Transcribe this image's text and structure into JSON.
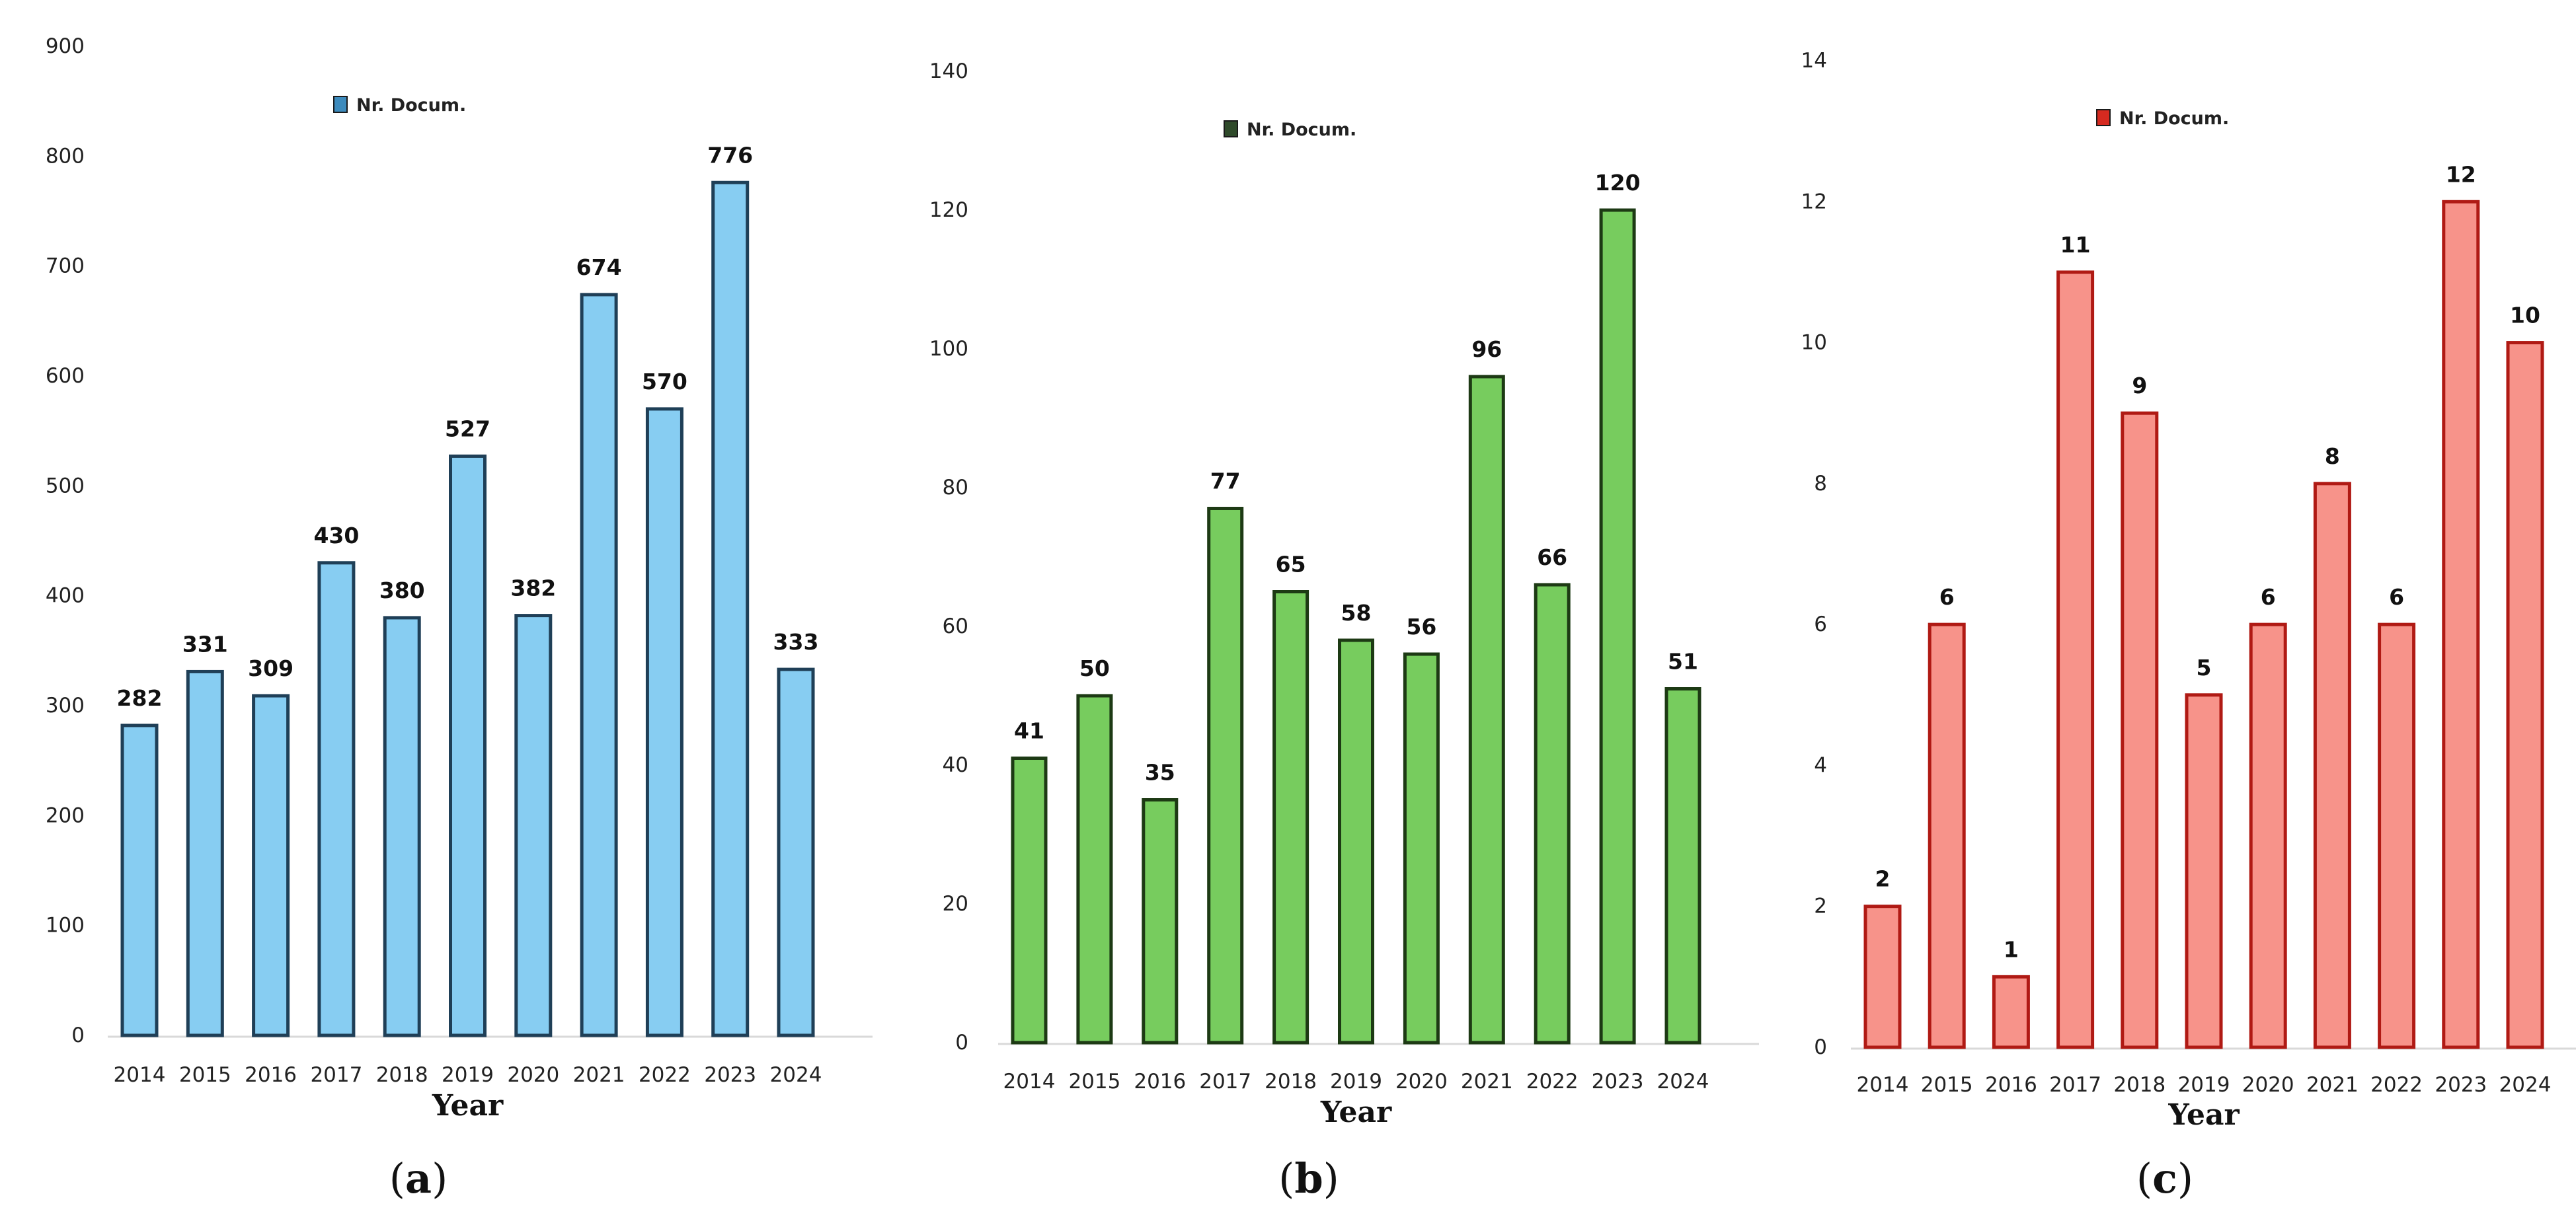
{
  "chart_data": [
    {
      "type": "bar",
      "panel_label": "a",
      "categories": [
        "2014",
        "2015",
        "2016",
        "2017",
        "2018",
        "2019",
        "2020",
        "2021",
        "2022",
        "2023",
        "2024"
      ],
      "values": [
        282,
        331,
        309,
        430,
        380,
        527,
        382,
        674,
        570,
        776,
        333
      ],
      "series_name": "Nr. Docum.",
      "xlabel": "Year",
      "ylabel": "",
      "ylim": [
        0,
        900
      ],
      "yticks": [
        "0",
        "100",
        "200",
        "300",
        "400",
        "500",
        "600",
        "700",
        "800",
        "900"
      ],
      "bar_color": "#87cdf2",
      "bar_edge_color": "#1f3f57",
      "legend_color": "#3d8bbd",
      "legend_placement": "top-center"
    },
    {
      "type": "bar",
      "panel_label": "b",
      "categories": [
        "2014",
        "2015",
        "2016",
        "2017",
        "2018",
        "2019",
        "2020",
        "2021",
        "2022",
        "2023",
        "2024"
      ],
      "values": [
        41,
        50,
        35,
        77,
        65,
        58,
        56,
        96,
        66,
        120,
        51
      ],
      "series_name": "Nr. Docum.",
      "xlabel": "Year",
      "ylabel": "",
      "ylim": [
        0,
        140
      ],
      "yticks": [
        "0",
        "20",
        "40",
        "60",
        "80",
        "100",
        "120",
        "140"
      ],
      "bar_color": "#77cc5e",
      "bar_edge_color": "#1d3a14",
      "legend_color": "#2f4a2a",
      "legend_placement": "top-center"
    },
    {
      "type": "bar",
      "panel_label": "c",
      "categories": [
        "2014",
        "2015",
        "2016",
        "2017",
        "2018",
        "2019",
        "2020",
        "2021",
        "2022",
        "2023",
        "2024"
      ],
      "values": [
        2,
        6,
        1,
        11,
        9,
        5,
        6,
        8,
        6,
        12,
        10
      ],
      "series_name": "Nr. Docum.",
      "xlabel": "Year",
      "ylabel": "",
      "ylim": [
        0,
        14
      ],
      "yticks": [
        "0",
        "2",
        "4",
        "6",
        "8",
        "10",
        "12",
        "14"
      ],
      "bar_color": "#f7938a",
      "bar_edge_color": "#b01a14",
      "legend_color": "#d62a20",
      "legend_placement": "top-center"
    }
  ]
}
